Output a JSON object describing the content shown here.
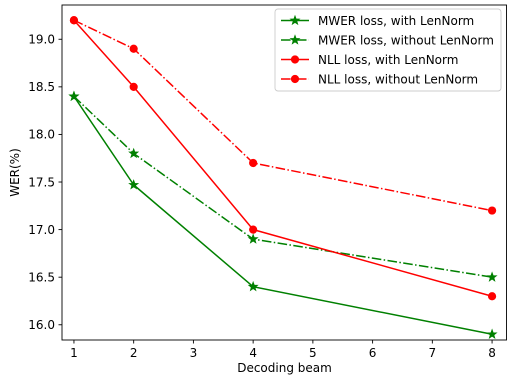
{
  "chart_data": {
    "type": "line",
    "title": "",
    "xlabel": "Decoding beam",
    "ylabel": "WER(%)",
    "x": [
      1,
      2,
      4,
      8
    ],
    "xticks": [
      1,
      2,
      3,
      4,
      5,
      6,
      7,
      8
    ],
    "xtick_labels": [
      "1",
      "2",
      "3",
      "4",
      "5",
      "6",
      "7",
      "8"
    ],
    "yticks": [
      16.0,
      16.5,
      17.0,
      17.5,
      18.0,
      18.5,
      19.0
    ],
    "ytick_labels": [
      "16.0",
      "16.5",
      "17.0",
      "17.5",
      "18.0",
      "18.5",
      "19.0"
    ],
    "xlim": [
      0.8,
      8.25
    ],
    "ylim": [
      15.84,
      19.36
    ],
    "grid": false,
    "legend_position": "top-right",
    "series": [
      {
        "name": "MWER loss, with LenNorm",
        "values": [
          18.4,
          17.47,
          16.4,
          15.9
        ],
        "color": "#008000",
        "linestyle": "solid",
        "marker": "star"
      },
      {
        "name": "MWER loss, without LenNorm",
        "values": [
          18.4,
          17.8,
          16.9,
          16.5
        ],
        "color": "#008000",
        "linestyle": "dashdot",
        "marker": "star"
      },
      {
        "name": "NLL loss, with LenNorm",
        "values": [
          19.2,
          18.5,
          17.0,
          16.3
        ],
        "color": "#ff0000",
        "linestyle": "solid",
        "marker": "circle"
      },
      {
        "name": "NLL loss, without LenNorm",
        "values": [
          19.2,
          18.9,
          17.7,
          17.2
        ],
        "color": "#ff0000",
        "linestyle": "dashdot",
        "marker": "circle"
      }
    ]
  }
}
